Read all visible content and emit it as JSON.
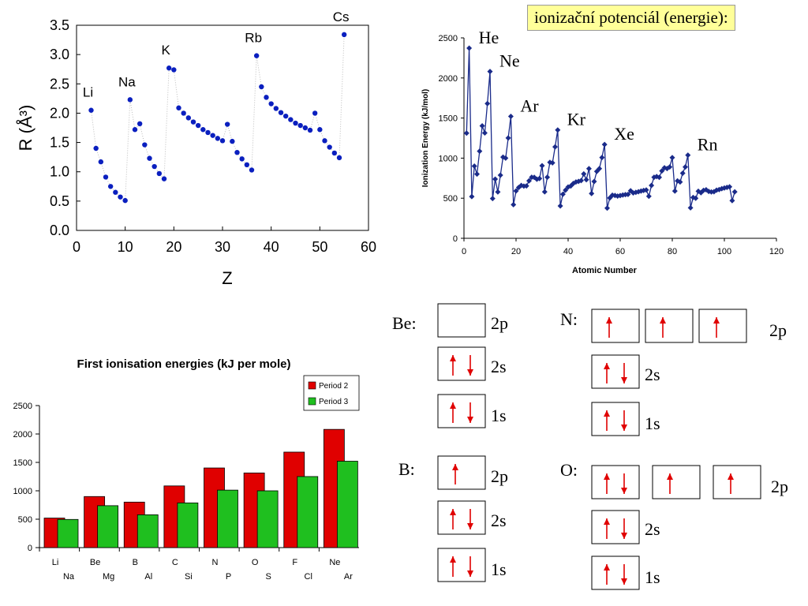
{
  "header": {
    "title": "ionizační potenciál (energie):"
  },
  "chart_data": [
    {
      "type": "scatter",
      "title": "",
      "xlabel": "Z",
      "ylabel": "R (Å³)",
      "xlim": [
        0,
        60
      ],
      "ylim": [
        0,
        3.5
      ],
      "x_ticks": [
        "0",
        "10",
        "20",
        "30",
        "40",
        "50",
        "60"
      ],
      "y_ticks": [
        "0.0",
        "0.5",
        "1.0",
        "1.5",
        "2.0",
        "2.5",
        "3.0",
        "3.5"
      ],
      "grid": false,
      "marker_color": "#0a1fbf",
      "points": [
        [
          3,
          2.05
        ],
        [
          4,
          1.4
        ],
        [
          5,
          1.17
        ],
        [
          6,
          0.91
        ],
        [
          7,
          0.75
        ],
        [
          8,
          0.65
        ],
        [
          9,
          0.57
        ],
        [
          10,
          0.51
        ],
        [
          11,
          2.23
        ],
        [
          12,
          1.72
        ],
        [
          13,
          1.82
        ],
        [
          14,
          1.46
        ],
        [
          15,
          1.23
        ],
        [
          16,
          1.09
        ],
        [
          17,
          0.97
        ],
        [
          18,
          0.88
        ],
        [
          19,
          2.77
        ],
        [
          20,
          2.74
        ],
        [
          21,
          2.09
        ],
        [
          22,
          2.0
        ],
        [
          23,
          1.92
        ],
        [
          24,
          1.85
        ],
        [
          25,
          1.79
        ],
        [
          26,
          1.72
        ],
        [
          27,
          1.67
        ],
        [
          28,
          1.62
        ],
        [
          29,
          1.57
        ],
        [
          30,
          1.53
        ],
        [
          31,
          1.81
        ],
        [
          32,
          1.52
        ],
        [
          33,
          1.33
        ],
        [
          34,
          1.22
        ],
        [
          35,
          1.12
        ],
        [
          36,
          1.03
        ],
        [
          37,
          2.98
        ],
        [
          38,
          2.45
        ],
        [
          39,
          2.27
        ],
        [
          40,
          2.16
        ],
        [
          41,
          2.08
        ],
        [
          42,
          2.01
        ],
        [
          43,
          1.95
        ],
        [
          44,
          1.89
        ],
        [
          45,
          1.83
        ],
        [
          46,
          1.79
        ],
        [
          47,
          1.75
        ],
        [
          48,
          1.71
        ],
        [
          49,
          2.0
        ],
        [
          50,
          1.72
        ],
        [
          51,
          1.53
        ],
        [
          52,
          1.42
        ],
        [
          53,
          1.32
        ],
        [
          54,
          1.24
        ],
        [
          55,
          3.34
        ]
      ],
      "labels": [
        {
          "text": "Li",
          "x": 3,
          "y": 2.05
        },
        {
          "text": "Na",
          "x": 11,
          "y": 2.23
        },
        {
          "text": "K",
          "x": 19,
          "y": 2.77
        },
        {
          "text": "Rb",
          "x": 37,
          "y": 2.98
        },
        {
          "text": "Cs",
          "x": 55,
          "y": 3.34
        }
      ]
    },
    {
      "type": "line",
      "title": "",
      "xlabel": "Atomic Number",
      "ylabel": "Ionization Energy (kJ/mol)",
      "xlim": [
        0,
        120
      ],
      "ylim": [
        0,
        2500
      ],
      "x_ticks": [
        "0",
        "20",
        "40",
        "60",
        "80",
        "100",
        "120"
      ],
      "y_ticks": [
        "0",
        "500",
        "1000",
        "1500",
        "2000",
        "2500"
      ],
      "grid": false,
      "line_color": "#1a2b8a",
      "x": [
        1,
        2,
        3,
        4,
        5,
        6,
        7,
        8,
        9,
        10,
        11,
        12,
        13,
        14,
        15,
        16,
        17,
        18,
        19,
        20,
        21,
        22,
        23,
        24,
        25,
        26,
        27,
        28,
        29,
        30,
        31,
        32,
        33,
        34,
        35,
        36,
        37,
        38,
        39,
        40,
        41,
        42,
        43,
        44,
        45,
        46,
        47,
        48,
        49,
        50,
        51,
        52,
        53,
        54,
        55,
        56,
        57,
        58,
        59,
        60,
        61,
        62,
        63,
        64,
        65,
        66,
        67,
        68,
        69,
        70,
        71,
        72,
        73,
        74,
        75,
        76,
        77,
        78,
        79,
        80,
        81,
        82,
        83,
        84,
        85,
        86,
        87,
        88,
        89,
        90,
        91,
        92,
        93,
        94,
        95,
        96,
        97,
        98,
        99,
        100,
        101,
        102,
        103,
        104
      ],
      "y": [
        1312,
        2372,
        520,
        900,
        801,
        1086,
        1402,
        1314,
        1681,
        2081,
        496,
        738,
        578,
        787,
        1012,
        1000,
        1251,
        1521,
        419,
        590,
        633,
        659,
        651,
        653,
        717,
        762,
        760,
        737,
        745,
        906,
        579,
        762,
        947,
        941,
        1140,
        1351,
        403,
        550,
        600,
        640,
        652,
        684,
        702,
        710,
        720,
        804,
        731,
        868,
        558,
        709,
        834,
        869,
        1008,
        1170,
        376,
        503,
        538,
        534,
        527,
        533,
        540,
        545,
        547,
        593,
        566,
        573,
        581,
        589,
        597,
        603,
        524,
        659,
        761,
        770,
        760,
        840,
        880,
        870,
        890,
        1007,
        589,
        716,
        703,
        812,
        890,
        1037,
        380,
        509,
        499,
        587,
        568,
        598,
        605,
        585,
        578,
        581,
        601,
        608,
        619,
        627,
        635,
        642,
        470,
        580
      ],
      "labels": [
        {
          "text": "He",
          "x": 2,
          "y": 2372
        },
        {
          "text": "Ne",
          "x": 10,
          "y": 2081
        },
        {
          "text": "Ar",
          "x": 18,
          "y": 1521
        },
        {
          "text": "Kr",
          "x": 36,
          "y": 1351
        },
        {
          "text": "Xe",
          "x": 54,
          "y": 1170
        },
        {
          "text": "Rn",
          "x": 86,
          "y": 1037
        }
      ]
    },
    {
      "type": "bar",
      "title": "First ionisation energies (kJ per mole)",
      "xlabel": "",
      "ylabel": "",
      "ylim": [
        0,
        2500
      ],
      "y_ticks": [
        "0",
        "500",
        "1000",
        "1500",
        "2000",
        "2500"
      ],
      "grid": false,
      "legend": "top-right",
      "categories_top": [
        "Li",
        "Be",
        "B",
        "C",
        "N",
        "O",
        "F",
        "Ne"
      ],
      "categories_bottom": [
        "Na",
        "Mg",
        "Al",
        "Si",
        "P",
        "S",
        "Cl",
        "Ar"
      ],
      "series": [
        {
          "name": "Period 2",
          "color": "#e00000",
          "values": [
            520,
            899,
            801,
            1086,
            1402,
            1314,
            1681,
            2081
          ]
        },
        {
          "name": "Period 3",
          "color": "#1fbf1f",
          "values": [
            496,
            738,
            578,
            787,
            1012,
            1000,
            1251,
            1521
          ]
        }
      ]
    }
  ],
  "orbitals": {
    "Be": {
      "label": "Be:",
      "p": "",
      "s2": "↑↓",
      "s1": "↑↓"
    },
    "B": {
      "label": "B:",
      "p": "↑",
      "s2": "↑↓",
      "s1": "↑↓"
    },
    "N": {
      "label": "N:",
      "p": [
        "↑",
        "↑",
        "↑"
      ],
      "s2": "↑↓",
      "s1": "↑↓"
    },
    "O": {
      "label": "O:",
      "p": [
        "↑↓",
        "↑",
        "↑"
      ],
      "s2": "↑↓",
      "s1": "↑↓"
    },
    "sublevels": {
      "p": "2p",
      "s2": "2s",
      "s1": "1s"
    }
  }
}
